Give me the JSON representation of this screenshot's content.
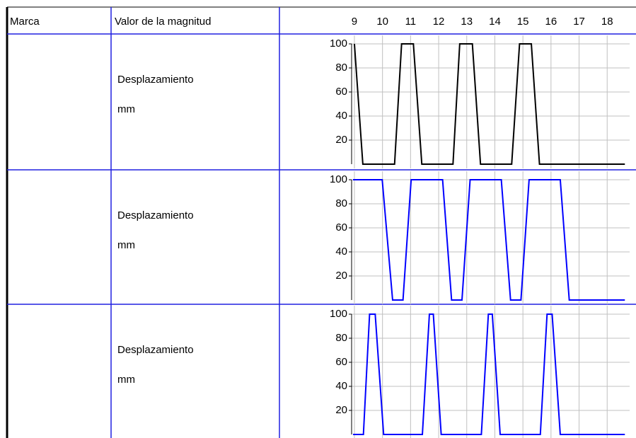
{
  "header": {
    "columns": [
      "Marca",
      "Valor de la magnitud"
    ]
  },
  "time_axis": {
    "xlim": [
      8.9,
      18.8
    ],
    "xticks": [
      9,
      10,
      11,
      12,
      13,
      14,
      15,
      16,
      17,
      18
    ]
  },
  "rows": [
    {
      "label": "Desplazamiento",
      "unit": "mm",
      "chart": {
        "type": "line",
        "color": "#000000",
        "ylim": [
          0,
          100
        ],
        "yticks": [
          20,
          40,
          60,
          80,
          100
        ],
        "grid": true,
        "x": [
          9.0,
          9.3,
          10.43,
          10.68,
          11.1,
          11.4,
          12.51,
          12.75,
          13.2,
          13.49,
          14.6,
          14.88,
          15.3,
          15.59,
          18.63
        ],
        "values": [
          100,
          0,
          0,
          100,
          100,
          0,
          0,
          100,
          100,
          0,
          0,
          100,
          100,
          0,
          0
        ]
      }
    },
    {
      "label": "Desplazamiento",
      "unit": "mm",
      "chart": {
        "type": "line",
        "color": "#0000ff",
        "ylim": [
          0,
          100
        ],
        "yticks": [
          20,
          40,
          60,
          80,
          100
        ],
        "grid": true,
        "x": [
          8.95,
          9.99,
          10.36,
          10.73,
          11.02,
          12.14,
          12.46,
          12.83,
          13.12,
          14.23,
          14.56,
          14.93,
          15.22,
          16.33,
          16.65,
          18.63
        ],
        "values": [
          100,
          100,
          0,
          0,
          100,
          100,
          0,
          0,
          100,
          100,
          0,
          0,
          100,
          100,
          0,
          0
        ]
      }
    },
    {
      "label": "Desplazamiento",
      "unit": "mm",
      "chart": {
        "type": "line",
        "color": "#0000ff",
        "ylim": [
          0,
          100
        ],
        "yticks": [
          20,
          40,
          60,
          80,
          100
        ],
        "grid": true,
        "x": [
          8.95,
          9.32,
          9.54,
          9.74,
          10.04,
          11.42,
          11.67,
          11.81,
          12.09,
          13.52,
          13.77,
          13.91,
          14.19,
          15.62,
          15.86,
          16.04,
          16.33,
          18.63
        ],
        "values": [
          0,
          0,
          100,
          100,
          0,
          0,
          100,
          100,
          0,
          0,
          100,
          100,
          0,
          0,
          100,
          100,
          0,
          0
        ]
      }
    }
  ]
}
